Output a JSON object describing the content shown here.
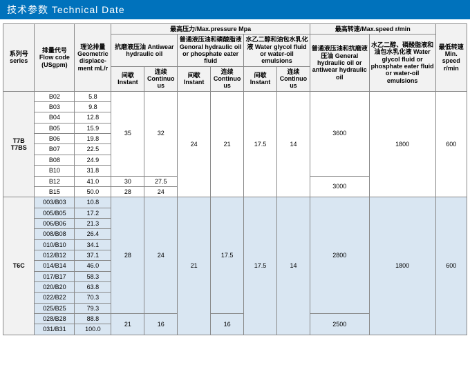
{
  "title": "技术参数 Technical Date",
  "headers": {
    "series": "系列号\nseries",
    "flowcode": "排量代号\nFlow code\n(USgpm)",
    "displacement": "理论排量\nGeometric displace-ment\nmL/r",
    "maxpressure": "最高压力/Max.pressure Mpa",
    "maxspeed": "最高转速/Max.speed r/min",
    "minspeed": "最低转速\nMin. speed\nr/min",
    "antiwear": "抗磨液压油\nAntiwear hydraulic oil",
    "general": "普通液压油和磷酸脂液\nGenoral hydraulic oil or phosphate eater fluid",
    "glycol": "水乙二醇和油包水乳化液\nWater glycol fluid or water-oil emulsions",
    "speed_general": "普通液压油和抗磨液压油\nGeneral hydraulic oil or antiwear hydraulic oil",
    "speed_glycol": "水乙二醇、磷酸脂液和油包水乳化液\nWater glycol fluid or phosphate eater fluid or water-oil emulsions",
    "instant": "间歇\nInstant",
    "continuous": "连续\nContinuous"
  },
  "series_t7b": "T7B\nT7BS",
  "series_t6c": "T6C",
  "t7b": [
    {
      "code": "B02",
      "disp": "5.8"
    },
    {
      "code": "B03",
      "disp": "9.8"
    },
    {
      "code": "B04",
      "disp": "12.8"
    },
    {
      "code": "B05",
      "disp": "15.9"
    },
    {
      "code": "B06",
      "disp": "19.8"
    },
    {
      "code": "B07",
      "disp": "22.5"
    },
    {
      "code": "B08",
      "disp": "24.9"
    },
    {
      "code": "B10",
      "disp": "31.8"
    },
    {
      "code": "B12",
      "disp": "41.0"
    },
    {
      "code": "B15",
      "disp": "50.0"
    }
  ],
  "t6c": [
    {
      "code": "003/B03",
      "disp": "10.8"
    },
    {
      "code": "005/B05",
      "disp": "17.2"
    },
    {
      "code": "006/B06",
      "disp": "21.3"
    },
    {
      "code": "008/B08",
      "disp": "26.4"
    },
    {
      "code": "010/B10",
      "disp": "34.1"
    },
    {
      "code": "012/B12",
      "disp": "37.1"
    },
    {
      "code": "014/B14",
      "disp": "46.0"
    },
    {
      "code": "017/B17",
      "disp": "58.3"
    },
    {
      "code": "020/B20",
      "disp": "63.8"
    },
    {
      "code": "022/B22",
      "disp": "70.3"
    },
    {
      "code": "025/B25",
      "disp": "79.3"
    },
    {
      "code": "028/B28",
      "disp": "88.8"
    },
    {
      "code": "031/B31",
      "disp": "100.0"
    }
  ],
  "vals": {
    "t7b_aw_i": "35",
    "t7b_aw_c": "32",
    "t7b_gen_i": "24",
    "t7b_gen_c": "21",
    "t7b_gly_i": "17.5",
    "t7b_gly_c": "14",
    "t7b_b12_aw_i": "30",
    "t7b_b12_aw_c": "27.5",
    "t7b_b15_aw_i": "28",
    "t7b_b15_aw_c": "24",
    "t7b_spd_gen_1": "3600",
    "t7b_spd_gen_2": "3000",
    "t7b_spd_gly": "1800",
    "t7b_min": "600",
    "t6c_aw_i": "28",
    "t6c_aw_c": "24",
    "t6c_gen_i": "21",
    "t6c_gen_c": "17.5",
    "t6c_gly_i": "17.5",
    "t6c_gly_c": "14",
    "t6c_last_aw_i": "21",
    "t6c_last_aw_c": "16",
    "t6c_last_gen_c": "16",
    "t6c_spd_gen_1": "2800",
    "t6c_spd_gen_2": "2500",
    "t6c_spd_gly": "1800",
    "t6c_min": "600"
  }
}
